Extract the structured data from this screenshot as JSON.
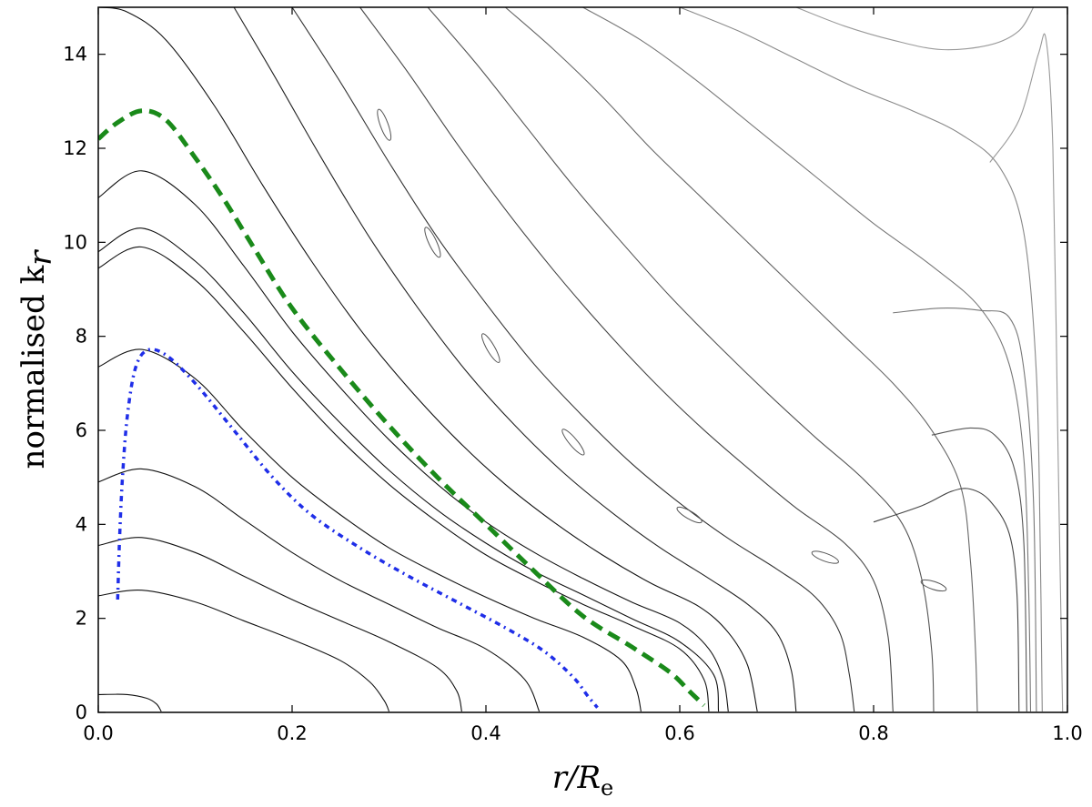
{
  "chart_data": {
    "type": "line",
    "xlabel": {
      "main": "r/R",
      "sub": "e"
    },
    "ylabel": {
      "main": "normalised k",
      "sub": "r"
    },
    "xlim": [
      0.0,
      1.0
    ],
    "ylim": [
      0,
      15
    ],
    "x_ticks": [
      0.0,
      0.2,
      0.4,
      0.6,
      0.8,
      1.0
    ],
    "x_tick_labels": [
      "0.0",
      "0.2",
      "0.4",
      "0.6",
      "0.8",
      "1.0"
    ],
    "y_ticks": [
      0,
      2,
      4,
      6,
      8,
      10,
      12,
      14
    ],
    "y_tick_labels": [
      "0",
      "2",
      "4",
      "6",
      "8",
      "10",
      "12",
      "14"
    ],
    "grid": false,
    "series": [
      {
        "style": "dashed",
        "color": "#1a8a1a",
        "points": [
          [
            0.0,
            12.2
          ],
          [
            0.02,
            12.55
          ],
          [
            0.045,
            12.8
          ],
          [
            0.07,
            12.6
          ],
          [
            0.1,
            11.8
          ],
          [
            0.13,
            10.9
          ],
          [
            0.16,
            9.9
          ],
          [
            0.2,
            8.6
          ],
          [
            0.25,
            7.3
          ],
          [
            0.3,
            6.1
          ],
          [
            0.35,
            5.0
          ],
          [
            0.4,
            4.0
          ],
          [
            0.45,
            3.0
          ],
          [
            0.5,
            2.05
          ],
          [
            0.55,
            1.4
          ],
          [
            0.59,
            0.85
          ],
          [
            0.61,
            0.45
          ],
          [
            0.625,
            0.15
          ]
        ]
      },
      {
        "style": "dashdot",
        "color": "#1f2ee8",
        "points": [
          [
            0.02,
            2.4
          ],
          [
            0.022,
            3.7
          ],
          [
            0.025,
            5.0
          ],
          [
            0.03,
            6.3
          ],
          [
            0.038,
            7.3
          ],
          [
            0.05,
            7.7
          ],
          [
            0.07,
            7.6
          ],
          [
            0.1,
            7.0
          ],
          [
            0.14,
            6.0
          ],
          [
            0.18,
            5.0
          ],
          [
            0.22,
            4.2
          ],
          [
            0.27,
            3.5
          ],
          [
            0.32,
            2.9
          ],
          [
            0.37,
            2.35
          ],
          [
            0.42,
            1.8
          ],
          [
            0.46,
            1.3
          ],
          [
            0.49,
            0.75
          ],
          [
            0.505,
            0.35
          ],
          [
            0.515,
            0.1
          ]
        ]
      }
    ],
    "contours": [
      {
        "color": "#111111",
        "points": [
          [
            0.0,
            0.38
          ],
          [
            0.03,
            0.38
          ],
          [
            0.05,
            0.3
          ],
          [
            0.06,
            0.18
          ],
          [
            0.065,
            0.02
          ]
        ]
      },
      {
        "color": "#111111",
        "points": [
          [
            0.0,
            2.48
          ],
          [
            0.045,
            2.6
          ],
          [
            0.1,
            2.35
          ],
          [
            0.15,
            1.95
          ],
          [
            0.2,
            1.55
          ],
          [
            0.25,
            1.1
          ],
          [
            0.28,
            0.65
          ],
          [
            0.295,
            0.25
          ],
          [
            0.3,
            0.02
          ]
        ]
      },
      {
        "color": "#111111",
        "points": [
          [
            0.0,
            3.55
          ],
          [
            0.045,
            3.72
          ],
          [
            0.1,
            3.4
          ],
          [
            0.15,
            2.9
          ],
          [
            0.2,
            2.4
          ],
          [
            0.25,
            1.95
          ],
          [
            0.3,
            1.5
          ],
          [
            0.35,
            0.95
          ],
          [
            0.37,
            0.45
          ],
          [
            0.375,
            0.02
          ]
        ]
      },
      {
        "color": "#111111",
        "points": [
          [
            0.0,
            4.9
          ],
          [
            0.045,
            5.18
          ],
          [
            0.1,
            4.8
          ],
          [
            0.15,
            4.1
          ],
          [
            0.2,
            3.4
          ],
          [
            0.25,
            2.8
          ],
          [
            0.3,
            2.3
          ],
          [
            0.35,
            1.8
          ],
          [
            0.4,
            1.35
          ],
          [
            0.44,
            0.7
          ],
          [
            0.455,
            0.02
          ]
        ]
      },
      {
        "color": "#111111",
        "points": [
          [
            0.0,
            7.35
          ],
          [
            0.045,
            7.72
          ],
          [
            0.1,
            7.1
          ],
          [
            0.15,
            6.0
          ],
          [
            0.2,
            5.0
          ],
          [
            0.25,
            4.2
          ],
          [
            0.3,
            3.5
          ],
          [
            0.35,
            2.95
          ],
          [
            0.4,
            2.45
          ],
          [
            0.45,
            2.0
          ],
          [
            0.5,
            1.6
          ],
          [
            0.54,
            1.1
          ],
          [
            0.555,
            0.5
          ],
          [
            0.56,
            0.02
          ]
        ]
      },
      {
        "color": "#111111",
        "points": [
          [
            0.0,
            9.45
          ],
          [
            0.045,
            9.9
          ],
          [
            0.1,
            9.2
          ],
          [
            0.15,
            8.1
          ],
          [
            0.2,
            6.9
          ],
          [
            0.25,
            5.8
          ],
          [
            0.3,
            4.85
          ],
          [
            0.35,
            4.05
          ],
          [
            0.4,
            3.35
          ],
          [
            0.45,
            2.8
          ],
          [
            0.5,
            2.3
          ],
          [
            0.55,
            1.85
          ],
          [
            0.6,
            1.35
          ],
          [
            0.625,
            0.7
          ],
          [
            0.63,
            0.02
          ]
        ]
      },
      {
        "color": "#111111",
        "points": [
          [
            0.0,
            9.8
          ],
          [
            0.045,
            10.3
          ],
          [
            0.1,
            9.6
          ],
          [
            0.15,
            8.5
          ],
          [
            0.2,
            7.25
          ],
          [
            0.25,
            6.15
          ],
          [
            0.3,
            5.15
          ],
          [
            0.35,
            4.3
          ],
          [
            0.4,
            3.6
          ],
          [
            0.45,
            3.0
          ],
          [
            0.5,
            2.5
          ],
          [
            0.55,
            2.0
          ],
          [
            0.6,
            1.5
          ],
          [
            0.635,
            0.8
          ],
          [
            0.64,
            0.02
          ]
        ]
      },
      {
        "color": "#111111",
        "points": [
          [
            0.0,
            10.95
          ],
          [
            0.045,
            11.52
          ],
          [
            0.1,
            10.8
          ],
          [
            0.15,
            9.5
          ],
          [
            0.2,
            8.1
          ],
          [
            0.25,
            6.9
          ],
          [
            0.3,
            5.8
          ],
          [
            0.35,
            4.85
          ],
          [
            0.4,
            4.05
          ],
          [
            0.45,
            3.4
          ],
          [
            0.5,
            2.85
          ],
          [
            0.55,
            2.35
          ],
          [
            0.6,
            1.9
          ],
          [
            0.63,
            1.35
          ],
          [
            0.645,
            0.7
          ],
          [
            0.65,
            0.02
          ]
        ]
      },
      {
        "color": "#111111",
        "points": [
          [
            0.0,
            15.0
          ],
          [
            0.03,
            14.9
          ],
          [
            0.07,
            14.3
          ],
          [
            0.12,
            12.9
          ],
          [
            0.17,
            11.2
          ],
          [
            0.22,
            9.6
          ],
          [
            0.27,
            8.15
          ],
          [
            0.32,
            6.9
          ],
          [
            0.37,
            5.8
          ],
          [
            0.42,
            4.85
          ],
          [
            0.47,
            4.05
          ],
          [
            0.52,
            3.35
          ],
          [
            0.57,
            2.75
          ],
          [
            0.62,
            2.25
          ],
          [
            0.65,
            1.7
          ],
          [
            0.67,
            1.0
          ],
          [
            0.68,
            0.02
          ]
        ]
      },
      {
        "color": "#222222",
        "points": [
          [
            0.14,
            15.0
          ],
          [
            0.18,
            13.6
          ],
          [
            0.23,
            11.8
          ],
          [
            0.28,
            10.1
          ],
          [
            0.33,
            8.6
          ],
          [
            0.38,
            7.25
          ],
          [
            0.43,
            6.1
          ],
          [
            0.48,
            5.1
          ],
          [
            0.53,
            4.25
          ],
          [
            0.58,
            3.5
          ],
          [
            0.63,
            2.85
          ],
          [
            0.67,
            2.3
          ],
          [
            0.7,
            1.7
          ],
          [
            0.715,
            0.9
          ],
          [
            0.72,
            0.02
          ]
        ]
      },
      {
        "color": "#333333",
        "points": [
          [
            0.2,
            15.0
          ],
          [
            0.25,
            13.4
          ],
          [
            0.3,
            11.7
          ],
          [
            0.35,
            10.1
          ],
          [
            0.4,
            8.7
          ],
          [
            0.45,
            7.4
          ],
          [
            0.5,
            6.3
          ],
          [
            0.55,
            5.3
          ],
          [
            0.6,
            4.45
          ],
          [
            0.65,
            3.7
          ],
          [
            0.7,
            3.05
          ],
          [
            0.74,
            2.45
          ],
          [
            0.765,
            1.7
          ],
          [
            0.775,
            0.8
          ],
          [
            0.78,
            0.02
          ]
        ]
      },
      {
        "color": "#444444",
        "points": [
          [
            0.27,
            15.0
          ],
          [
            0.32,
            13.6
          ],
          [
            0.37,
            12.1
          ],
          [
            0.42,
            10.7
          ],
          [
            0.47,
            9.4
          ],
          [
            0.52,
            8.2
          ],
          [
            0.57,
            7.1
          ],
          [
            0.62,
            6.1
          ],
          [
            0.67,
            5.2
          ],
          [
            0.72,
            4.35
          ],
          [
            0.77,
            3.6
          ],
          [
            0.8,
            2.8
          ],
          [
            0.815,
            1.6
          ],
          [
            0.82,
            0.02
          ]
        ]
      },
      {
        "color": "#555555",
        "points": [
          [
            0.34,
            15.0
          ],
          [
            0.39,
            13.8
          ],
          [
            0.44,
            12.5
          ],
          [
            0.49,
            11.2
          ],
          [
            0.54,
            10.0
          ],
          [
            0.59,
            8.85
          ],
          [
            0.64,
            7.8
          ],
          [
            0.69,
            6.8
          ],
          [
            0.74,
            5.85
          ],
          [
            0.79,
            4.95
          ],
          [
            0.83,
            4.0
          ],
          [
            0.85,
            2.8
          ],
          [
            0.86,
            1.3
          ],
          [
            0.862,
            0.02
          ]
        ]
      },
      {
        "color": "#666666",
        "points": [
          [
            0.42,
            15.0
          ],
          [
            0.47,
            14.1
          ],
          [
            0.52,
            13.1
          ],
          [
            0.57,
            12.0
          ],
          [
            0.62,
            11.0
          ],
          [
            0.67,
            10.0
          ],
          [
            0.72,
            9.0
          ],
          [
            0.77,
            8.0
          ],
          [
            0.82,
            7.0
          ],
          [
            0.86,
            6.0
          ],
          [
            0.89,
            4.8
          ],
          [
            0.9,
            3.2
          ],
          [
            0.905,
            1.4
          ],
          [
            0.907,
            0.02
          ]
        ]
      },
      {
        "color": "#777777",
        "points": [
          [
            0.5,
            15.0
          ],
          [
            0.56,
            14.3
          ],
          [
            0.62,
            13.4
          ],
          [
            0.68,
            12.4
          ],
          [
            0.74,
            11.4
          ],
          [
            0.8,
            10.4
          ],
          [
            0.86,
            9.5
          ],
          [
            0.91,
            8.6
          ],
          [
            0.94,
            7.4
          ],
          [
            0.955,
            5.4
          ],
          [
            0.96,
            2.6
          ],
          [
            0.962,
            0.02
          ]
        ]
      },
      {
        "color": "#888888",
        "points": [
          [
            0.6,
            15.0
          ],
          [
            0.66,
            14.5
          ],
          [
            0.72,
            13.9
          ],
          [
            0.78,
            13.3
          ],
          [
            0.84,
            12.8
          ],
          [
            0.89,
            12.3
          ],
          [
            0.93,
            11.6
          ],
          [
            0.955,
            10.2
          ],
          [
            0.968,
            7.2
          ],
          [
            0.972,
            3.4
          ],
          [
            0.974,
            0.02
          ]
        ]
      },
      {
        "color": "#999999",
        "points": [
          [
            0.72,
            15.0
          ],
          [
            0.77,
            14.6
          ],
          [
            0.82,
            14.3
          ],
          [
            0.87,
            14.1
          ],
          [
            0.92,
            14.2
          ],
          [
            0.95,
            14.5
          ],
          [
            0.965,
            15.0
          ]
        ]
      },
      {
        "color": "#444444",
        "points": [
          [
            0.8,
            4.05
          ],
          [
            0.85,
            4.4
          ],
          [
            0.88,
            4.7
          ],
          [
            0.9,
            4.75
          ],
          [
            0.92,
            4.5
          ],
          [
            0.94,
            3.8
          ],
          [
            0.948,
            2.5
          ],
          [
            0.95,
            0.02
          ]
        ]
      },
      {
        "color": "#555555",
        "points": [
          [
            0.86,
            5.9
          ],
          [
            0.9,
            6.05
          ],
          [
            0.925,
            5.9
          ],
          [
            0.945,
            5.2
          ],
          [
            0.955,
            3.6
          ],
          [
            0.958,
            0.02
          ]
        ]
      },
      {
        "color": "#777777",
        "points": [
          [
            0.82,
            8.5
          ],
          [
            0.87,
            8.6
          ],
          [
            0.91,
            8.55
          ],
          [
            0.94,
            8.4
          ],
          [
            0.955,
            7.3
          ],
          [
            0.965,
            4.5
          ],
          [
            0.968,
            0.02
          ]
        ]
      },
      {
        "color": "#999999",
        "points": [
          [
            0.92,
            11.7
          ],
          [
            0.95,
            12.6
          ],
          [
            0.97,
            14.0
          ],
          [
            0.978,
            14.3
          ],
          [
            0.985,
            12.0
          ],
          [
            0.99,
            6.0
          ],
          [
            0.995,
            0.02
          ]
        ]
      }
    ],
    "islands": [
      {
        "cx": 0.295,
        "cy": 12.5,
        "rx": 0.004,
        "ry": 0.35,
        "rot": -20
      },
      {
        "cx": 0.345,
        "cy": 10.0,
        "rx": 0.004,
        "ry": 0.35,
        "rot": -25
      },
      {
        "cx": 0.405,
        "cy": 7.75,
        "rx": 0.004,
        "ry": 0.35,
        "rot": -30
      },
      {
        "cx": 0.49,
        "cy": 5.75,
        "rx": 0.004,
        "ry": 0.35,
        "rot": -40
      },
      {
        "cx": 0.61,
        "cy": 4.2,
        "rx": 0.004,
        "ry": 0.3,
        "rot": -60
      },
      {
        "cx": 0.75,
        "cy": 3.3,
        "rx": 0.004,
        "ry": 0.3,
        "rot": -70
      },
      {
        "cx": 0.862,
        "cy": 2.7,
        "rx": 0.004,
        "ry": 0.28,
        "rot": -72
      }
    ]
  }
}
